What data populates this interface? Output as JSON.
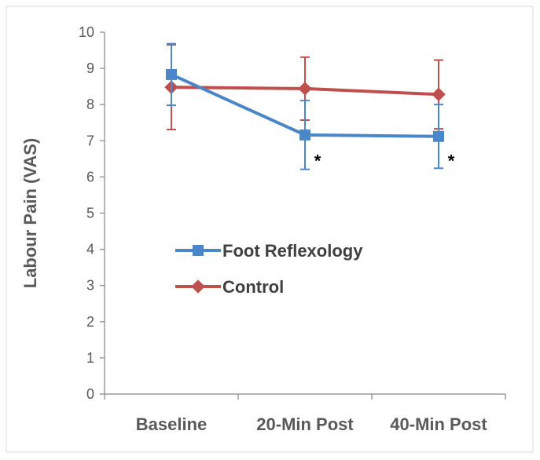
{
  "chart_data": {
    "type": "line",
    "title": "",
    "xlabel": "",
    "ylabel": "Labour Pain (VAS)",
    "categories": [
      "Baseline",
      "20-Min Post",
      "40-Min Post"
    ],
    "ylim": [
      0,
      10
    ],
    "yticks": [
      0,
      1,
      2,
      3,
      4,
      5,
      6,
      7,
      8,
      9,
      10
    ],
    "grid": false,
    "legend": "center-left",
    "series": [
      {
        "name": "Foot Reflexology",
        "color": "#4a86c8",
        "marker": "square",
        "values": [
          8.83,
          7.16,
          7.12
        ],
        "error": [
          0.85,
          0.95,
          0.88
        ]
      },
      {
        "name": "Control",
        "color": "#c0504d",
        "marker": "diamond",
        "values": [
          8.48,
          8.44,
          8.28
        ],
        "error": [
          1.17,
          0.87,
          0.95
        ]
      }
    ],
    "annotations": [
      {
        "text": "*",
        "category": "20-Min Post",
        "y": 6.5
      },
      {
        "text": "*",
        "category": "40-Min Post",
        "y": 6.5
      }
    ]
  }
}
